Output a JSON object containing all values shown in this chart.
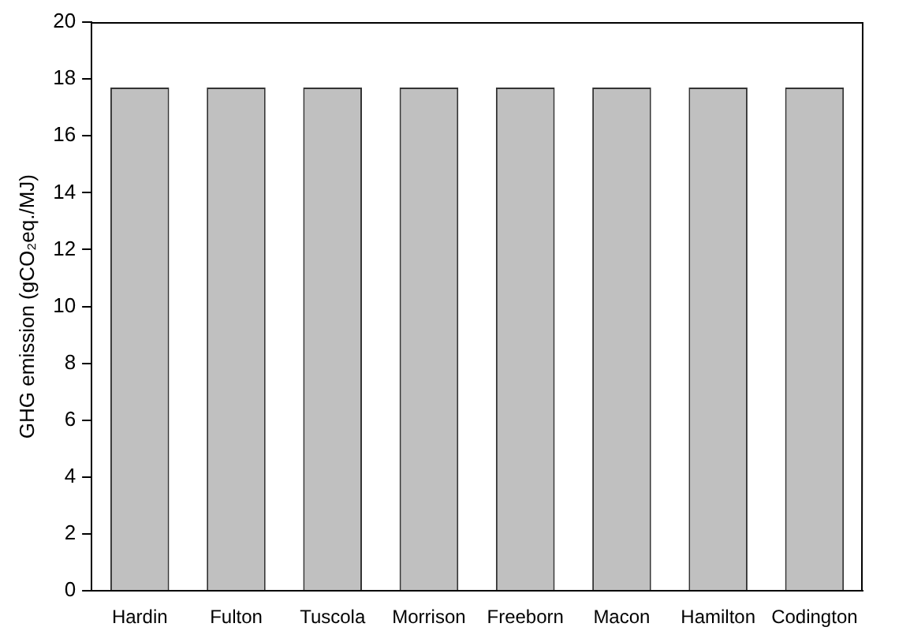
{
  "chart_data": {
    "type": "bar",
    "ylabel": "GHG emission (gCO₂eq./MJ)",
    "categories": [
      "Hardin",
      "Fulton",
      "Tuscola",
      "Morrison",
      "Freeborn",
      "Macon",
      "Hamilton",
      "Codington"
    ],
    "values": [
      17.7,
      17.7,
      17.7,
      17.7,
      17.7,
      17.7,
      17.7,
      17.7
    ],
    "color": "#c0c0c0",
    "ylim": [
      0,
      20
    ],
    "yticks": [
      0,
      2,
      4,
      6,
      8,
      10,
      12,
      14,
      16,
      18,
      20
    ],
    "grid": false,
    "legend": false
  }
}
